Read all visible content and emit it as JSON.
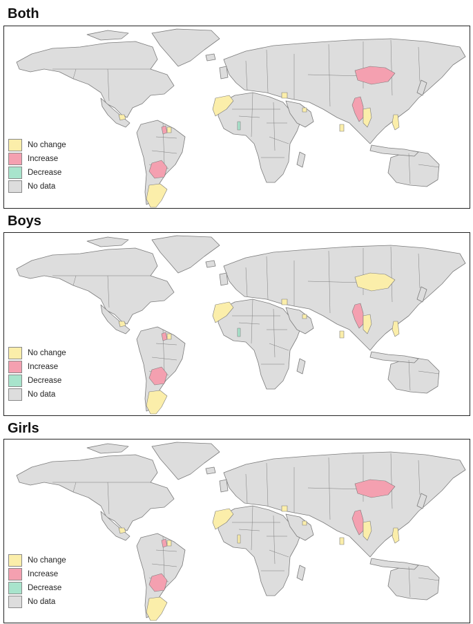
{
  "colors": {
    "no_change": "#fbeeaa",
    "increase": "#f4a0b0",
    "decrease": "#a8e4cc",
    "no_data": "#dddddd",
    "border": "#7a7a7a",
    "ocean": "#ffffff"
  },
  "legend": [
    {
      "key": "no_change",
      "label": "No change"
    },
    {
      "key": "increase",
      "label": "Increase"
    },
    {
      "key": "decrease",
      "label": "Decrease"
    },
    {
      "key": "no_data",
      "label": "No data"
    }
  ],
  "panels": [
    {
      "title": "Both",
      "status": {
        "mongolia": "increase",
        "argentina": "no_change",
        "bolivia": "increase",
        "myanmar": "increase",
        "thailand": "no_change",
        "morocco": "no_change",
        "philippines": "no_change",
        "sri_lanka": "no_change",
        "guyana": "increase",
        "suriname": "no_change",
        "togo": "decrease",
        "central_am": "no_change",
        "egypt_n": "no_change",
        "qatar": "no_change"
      }
    },
    {
      "title": "Boys",
      "status": {
        "mongolia": "no_change",
        "argentina": "no_change",
        "bolivia": "increase",
        "myanmar": "increase",
        "thailand": "no_change",
        "morocco": "no_change",
        "philippines": "no_change",
        "sri_lanka": "no_change",
        "guyana": "increase",
        "suriname": "no_change",
        "togo": "decrease",
        "central_am": "no_change",
        "egypt_n": "no_change",
        "qatar": "no_change"
      }
    },
    {
      "title": "Girls",
      "status": {
        "mongolia": "increase",
        "argentina": "no_change",
        "bolivia": "increase",
        "myanmar": "increase",
        "thailand": "no_change",
        "morocco": "no_change",
        "philippines": "no_change",
        "sri_lanka": "no_change",
        "guyana": "increase",
        "suriname": "no_change",
        "togo": "no_change",
        "central_am": "no_change",
        "egypt_n": "no_change",
        "qatar": "no_change"
      }
    }
  ]
}
